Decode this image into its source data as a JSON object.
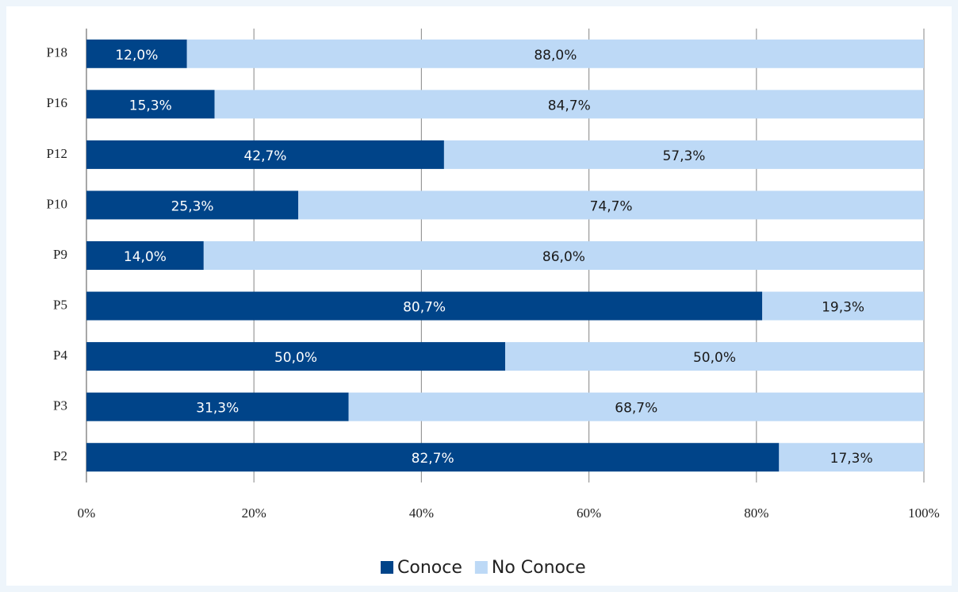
{
  "chart_data": {
    "type": "stacked_bar_horizontal",
    "categories": [
      "P18",
      "P16",
      "P12",
      "P10",
      "P9",
      "P5",
      "P4",
      "P3",
      "P2"
    ],
    "series": [
      {
        "name": "Conoce",
        "color": "#004489",
        "label_color": "#ffffff",
        "values": [
          12.0,
          15.3,
          42.7,
          25.3,
          14.0,
          80.7,
          50.0,
          31.3,
          82.7
        ],
        "value_labels": [
          "12,0%",
          "15,3%",
          "42,7%",
          "25,3%",
          "14,0%",
          "80,7%",
          "50,0%",
          "31,3%",
          "82,7%"
        ]
      },
      {
        "name": "No Conoce",
        "color": "#bdd9f6",
        "label_color": "#1a1a1a",
        "values": [
          88.0,
          84.7,
          57.3,
          74.7,
          86.0,
          19.3,
          50.0,
          68.7,
          17.3
        ],
        "value_labels": [
          "88,0%",
          "84,7%",
          "57,3%",
          "74,7%",
          "86,0%",
          "19,3%",
          "50,0%",
          "68,7%",
          "17,3%"
        ]
      }
    ],
    "xlim": [
      0,
      100
    ],
    "xticks": [
      {
        "value": 0,
        "label": "0%"
      },
      {
        "value": 20,
        "label": "20%"
      },
      {
        "value": 40,
        "label": "40%"
      },
      {
        "value": 60,
        "label": "60%"
      },
      {
        "value": 80,
        "label": "80%"
      },
      {
        "value": 100,
        "label": "100%"
      }
    ],
    "grid": true,
    "legend": "bottom"
  }
}
